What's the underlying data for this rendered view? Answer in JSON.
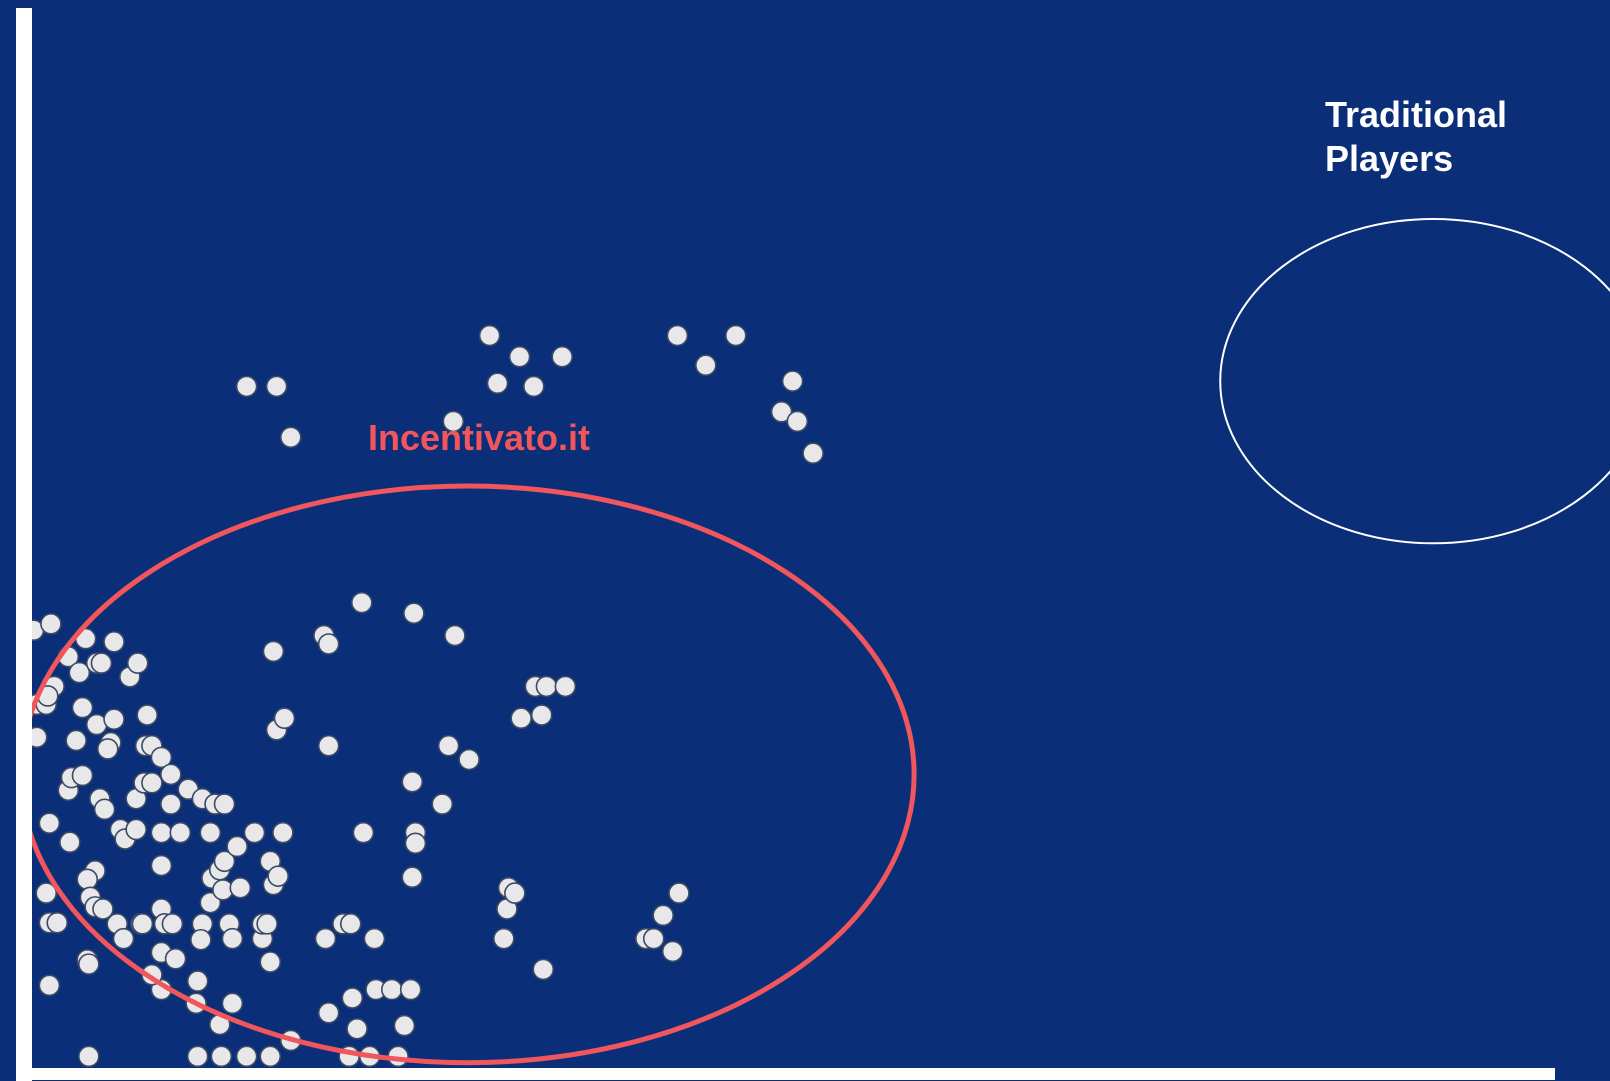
{
  "colors": {
    "background": "#0b2e79",
    "axis": "#ffffff",
    "point_fill": "#e8e8ea",
    "point_stroke": "#3b4a66",
    "highlight": "#f0565b",
    "label_white": "#ffffff"
  },
  "chart_data": {
    "type": "scatter",
    "title": "",
    "xlabel": "",
    "ylabel": "",
    "xlim": [
      0,
      100
    ],
    "ylim": [
      0,
      100
    ],
    "grid": false,
    "legend": "none",
    "annotations": [
      {
        "id": "incentivato",
        "text": "Incentivato.it",
        "color": "#f0565b",
        "region": {
          "cx": 27.6,
          "cy": 27.7,
          "rx": 28.3,
          "ry": 27.2
        }
      },
      {
        "id": "traditional",
        "text": [
          "Traditional",
          "Players"
        ],
        "color": "#ffffff",
        "region": {
          "cx": 88.8,
          "cy": 64.8,
          "rx": 13.5,
          "ry": 15.3
        }
      }
    ],
    "series": [
      {
        "values": [
          [
            0.1,
            41.3
          ],
          [
            1.2,
            41.9
          ],
          [
            0.3,
            31.2
          ],
          [
            1.4,
            36.0
          ],
          [
            0.3,
            34.3
          ],
          [
            0.9,
            34.3
          ],
          [
            1.0,
            35.1
          ],
          [
            1.1,
            23.1
          ],
          [
            0.9,
            16.5
          ],
          [
            1.1,
            13.7
          ],
          [
            1.1,
            7.8
          ],
          [
            1.6,
            13.7
          ],
          [
            2.3,
            38.8
          ],
          [
            2.8,
            30.9
          ],
          [
            2.3,
            26.2
          ],
          [
            2.5,
            27.4
          ],
          [
            2.4,
            21.3
          ],
          [
            3.0,
            37.3
          ],
          [
            3.2,
            34.0
          ],
          [
            3.2,
            27.6
          ],
          [
            3.4,
            40.5
          ],
          [
            4.0,
            18.6
          ],
          [
            3.5,
            17.8
          ],
          [
            3.7,
            16.1
          ],
          [
            4.0,
            15.2
          ],
          [
            3.5,
            10.2
          ],
          [
            3.6,
            9.8
          ],
          [
            3.6,
            1.1
          ],
          [
            4.1,
            38.2
          ],
          [
            4.4,
            38.2
          ],
          [
            4.1,
            32.4
          ],
          [
            4.3,
            25.4
          ],
          [
            4.6,
            24.4
          ],
          [
            4.5,
            15.0
          ],
          [
            5.2,
            40.2
          ],
          [
            5.2,
            32.9
          ],
          [
            5.0,
            30.7
          ],
          [
            4.8,
            30.1
          ],
          [
            5.6,
            22.5
          ],
          [
            5.9,
            21.6
          ],
          [
            5.4,
            13.6
          ],
          [
            5.8,
            12.2
          ],
          [
            6.2,
            36.9
          ],
          [
            6.7,
            38.2
          ],
          [
            6.6,
            25.4
          ],
          [
            6.6,
            22.5
          ],
          [
            6.9,
            13.6
          ],
          [
            7.0,
            13.6
          ],
          [
            7.3,
            33.3
          ],
          [
            7.2,
            30.4
          ],
          [
            7.6,
            30.4
          ],
          [
            7.1,
            26.9
          ],
          [
            7.6,
            26.9
          ],
          [
            8.2,
            29.3
          ],
          [
            8.2,
            19.1
          ],
          [
            8.2,
            15.0
          ],
          [
            8.4,
            13.6
          ],
          [
            8.9,
            13.6
          ],
          [
            8.2,
            22.2
          ],
          [
            8.2,
            10.9
          ],
          [
            8.2,
            7.4
          ],
          [
            7.6,
            8.8
          ],
          [
            8.8,
            27.7
          ],
          [
            8.8,
            24.9
          ],
          [
            9.4,
            22.2
          ],
          [
            9.9,
            26.3
          ],
          [
            9.1,
            10.3
          ],
          [
            10.8,
            25.4
          ],
          [
            10.8,
            13.6
          ],
          [
            10.7,
            12.1
          ],
          [
            10.4,
            6.1
          ],
          [
            11.6,
            24.9
          ],
          [
            11.3,
            22.2
          ],
          [
            11.4,
            17.9
          ],
          [
            11.3,
            15.6
          ],
          [
            11.9,
            18.7
          ],
          [
            12.2,
            19.5
          ],
          [
            12.1,
            16.8
          ],
          [
            13.0,
            20.9
          ],
          [
            12.5,
            13.6
          ],
          [
            12.0,
            1.1
          ],
          [
            11.9,
            4.1
          ],
          [
            12.2,
            24.9
          ],
          [
            10.5,
            8.2
          ],
          [
            12.7,
            12.2
          ],
          [
            13.2,
            17.0
          ],
          [
            14.1,
            22.2
          ],
          [
            14.6,
            12.2
          ],
          [
            12.7,
            6.1
          ],
          [
            10.5,
            1.1
          ],
          [
            13.6,
            64.3
          ],
          [
            15.5,
            64.3
          ],
          [
            15.3,
            39.3
          ],
          [
            15.1,
            19.5
          ],
          [
            14.6,
            13.6
          ],
          [
            14.9,
            13.6
          ],
          [
            15.3,
            17.3
          ],
          [
            15.6,
            18.1
          ],
          [
            15.1,
            10.0
          ],
          [
            15.5,
            31.9
          ],
          [
            16.4,
            59.5
          ],
          [
            16.0,
            33.0
          ],
          [
            15.9,
            22.2
          ],
          [
            16.4,
            2.6
          ],
          [
            15.1,
            1.1
          ],
          [
            18.5,
            40.8
          ],
          [
            18.8,
            40.0
          ],
          [
            18.8,
            30.4
          ],
          [
            18.6,
            12.2
          ],
          [
            18.8,
            5.2
          ],
          [
            19.7,
            13.6
          ],
          [
            20.2,
            13.6
          ],
          [
            20.9,
            43.9
          ],
          [
            21.0,
            22.2
          ],
          [
            21.7,
            12.2
          ],
          [
            20.3,
            6.6
          ],
          [
            20.6,
            3.7
          ],
          [
            20.1,
            1.1
          ],
          [
            21.8,
            7.4
          ],
          [
            22.8,
            7.4
          ],
          [
            23.2,
            1.1
          ],
          [
            24.0,
            7.4
          ],
          [
            24.3,
            22.2
          ],
          [
            23.6,
            4.0
          ],
          [
            24.1,
            27.0
          ],
          [
            24.3,
            21.2
          ],
          [
            24.2,
            42.9
          ],
          [
            24.1,
            18.0
          ],
          [
            26.8,
            40.8
          ],
          [
            26.7,
            61.0
          ],
          [
            26.4,
            30.4
          ],
          [
            27.7,
            29.1
          ],
          [
            26.0,
            24.9
          ],
          [
            29.5,
            64.6
          ],
          [
            21.4,
            1.1
          ],
          [
            13.6,
            1.1
          ]
        ],
        "color": "#e8e8ea"
      },
      {
        "values": [
          [
            29.0,
            69.1
          ],
          [
            30.9,
            67.1
          ],
          [
            31.8,
            64.3
          ],
          [
            33.6,
            67.1
          ],
          [
            31.9,
            36.0
          ],
          [
            32.6,
            36.0
          ],
          [
            31.0,
            33.0
          ],
          [
            32.3,
            33.3
          ],
          [
            29.9,
            12.2
          ],
          [
            30.1,
            15.0
          ],
          [
            30.2,
            17.0
          ],
          [
            30.6,
            16.5
          ],
          [
            32.4,
            9.3
          ],
          [
            33.8,
            36.0
          ],
          [
            38.9,
            12.2
          ],
          [
            40.6,
            11.0
          ],
          [
            39.4,
            12.2
          ],
          [
            41.0,
            16.5
          ],
          [
            40.0,
            14.4
          ]
        ],
        "color": "#e8e8ea"
      },
      {
        "values": [
          [
            40.9,
            69.1
          ],
          [
            42.7,
            66.3
          ],
          [
            44.6,
            69.1
          ],
          [
            48.2,
            64.8
          ],
          [
            47.5,
            61.9
          ],
          [
            48.5,
            61.0
          ],
          [
            49.5,
            58.0
          ]
        ],
        "color": "#e8e8ea"
      }
    ]
  }
}
